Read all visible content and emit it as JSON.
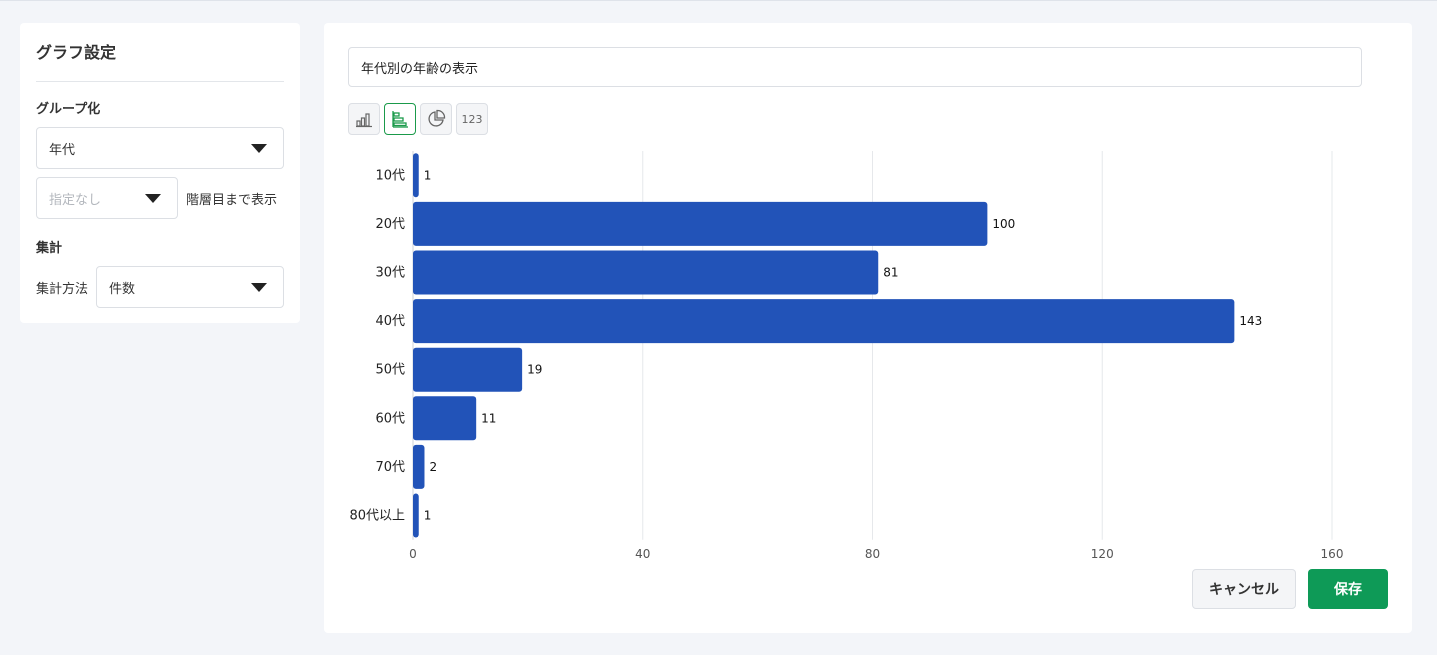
{
  "settings": {
    "title": "グラフ設定",
    "grouping_label": "グループ化",
    "group_select_value": "年代",
    "subgroup_placeholder": "指定なし",
    "hierarchy_hint": "階層目まで表示",
    "aggregate_label": "集計",
    "method_label": "集計方法",
    "method_value": "件数"
  },
  "main": {
    "chart_title_value": "年代別の年齢の表示",
    "chart_type_buttons": [
      {
        "icon": "vertical-bar-chart-icon"
      },
      {
        "icon": "horizontal-bar-chart-icon",
        "active": true
      },
      {
        "icon": "pie-chart-icon"
      },
      {
        "icon": "number-icon",
        "label": "123"
      }
    ],
    "cancel_label": "キャンセル",
    "save_label": "保存"
  },
  "colors": {
    "bar": "#2253b8",
    "accent_green": "#0e9a57",
    "grid": "#e6e8eb"
  },
  "chart_data": {
    "type": "bar",
    "orientation": "horizontal",
    "categories": [
      "10代",
      "20代",
      "30代",
      "40代",
      "50代",
      "60代",
      "70代",
      "80代以上"
    ],
    "values": [
      1,
      100,
      81,
      143,
      19,
      11,
      2,
      1
    ],
    "xlim": [
      0,
      160
    ],
    "xticks": [
      0,
      40,
      80,
      120,
      160
    ],
    "grid": true,
    "data_labels": true
  }
}
